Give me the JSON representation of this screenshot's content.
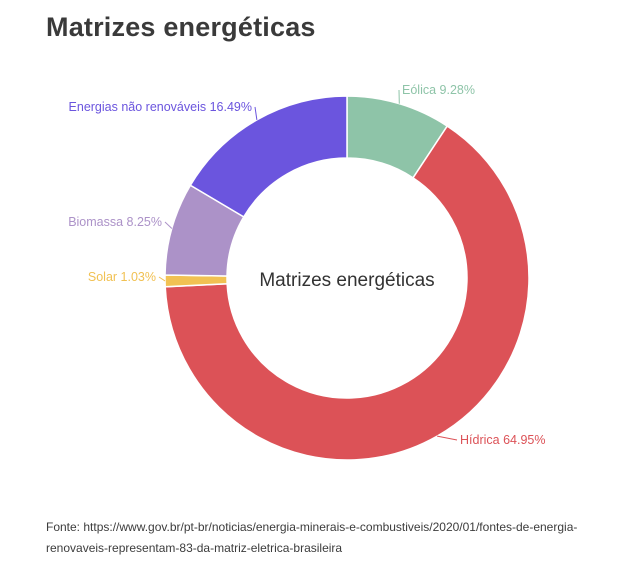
{
  "title": "Matrizes energéticas",
  "source": "Fonte: https://www.gov.br/pt-br/noticias/energia-minerais-e-combustiveis/2020/01/fontes-de-energia-renovaveis-representam-83-da-matriz-eletrica-brasileira",
  "chart_data": {
    "type": "pie",
    "donut": true,
    "title": "Matrizes energéticas",
    "center_label": "Matrizes energéticas",
    "slices": [
      {
        "name": "Eólica",
        "value": 9.28,
        "label": "Eólica 9.28%",
        "color": "#8ec4a8"
      },
      {
        "name": "Hídrica",
        "value": 64.95,
        "label": "Hídrica 64.95%",
        "color": "#dc5257"
      },
      {
        "name": "Solar",
        "value": 1.03,
        "label": "Solar 1.03%",
        "color": "#f1c153"
      },
      {
        "name": "Biomassa",
        "value": 8.25,
        "label": "Biomassa 8.25%",
        "color": "#ac92c8"
      },
      {
        "name": "Energias não renováveis",
        "value": 16.49,
        "label": "Energias não renováveis 16.49%",
        "color": "#6b55de"
      }
    ]
  }
}
